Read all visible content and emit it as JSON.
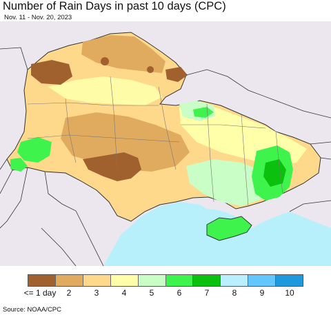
{
  "header": {
    "title": "Number of Rain Days in past 10 days (CPC)",
    "subtitle": "Nov. 11 - Nov. 20, 2023"
  },
  "legend": {
    "labels": [
      "<= 1 day",
      "2",
      "3",
      "4",
      "5",
      "6",
      "7",
      "8",
      "9",
      "10"
    ],
    "colors": [
      "#a0612f",
      "#e0ab5e",
      "#fed98b",
      "#ffffaa",
      "#c9fec6",
      "#3ef44c",
      "#0cc00e",
      "#b9efff",
      "#63c6fc",
      "#1e99de"
    ]
  },
  "footer": {
    "source": "Source: NOAA/CPC"
  },
  "map_colors": {
    "background": "#ece7ee",
    "sea": "#b7f0fb",
    "border": "#333333"
  }
}
